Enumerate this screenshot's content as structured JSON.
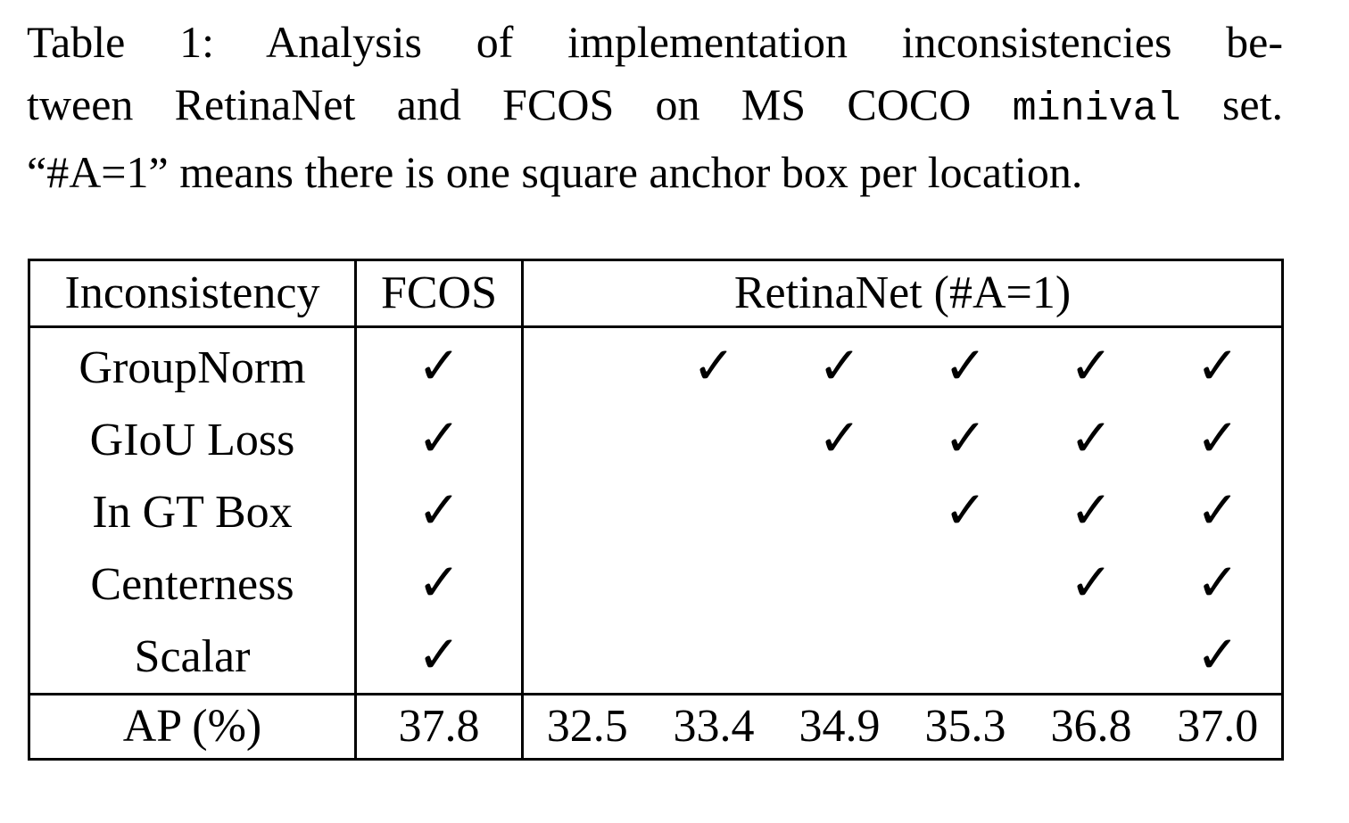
{
  "caption": {
    "line1": "Table 1:  Analysis of implementation inconsistencies be-",
    "line2_a": "tween RetinaNet and FCOS on MS COCO",
    "line2_mono": "minival",
    "line2_b": "set.",
    "line3": "“#A=1” means there is one square anchor box per location."
  },
  "table": {
    "headers": {
      "inconsistency": "Inconsistency",
      "fcos": "FCOS",
      "retinanet": "RetinaNet (#A=1)"
    },
    "check_glyph": "✓",
    "rows": [
      {
        "label": "GroupNorm",
        "fcos": true,
        "retina": [
          false,
          true,
          true,
          true,
          true,
          true
        ]
      },
      {
        "label": "GIoU Loss",
        "fcos": true,
        "retina": [
          false,
          false,
          true,
          true,
          true,
          true
        ]
      },
      {
        "label": "In GT Box",
        "fcos": true,
        "retina": [
          false,
          false,
          false,
          true,
          true,
          true
        ]
      },
      {
        "label": "Centerness",
        "fcos": true,
        "retina": [
          false,
          false,
          false,
          false,
          true,
          true
        ]
      },
      {
        "label": "Scalar",
        "fcos": true,
        "retina": [
          false,
          false,
          false,
          false,
          false,
          true
        ]
      }
    ],
    "ap": {
      "label": "AP (%)",
      "fcos": "37.8",
      "retina": [
        "32.5",
        "33.4",
        "34.9",
        "35.3",
        "36.8",
        "37.0"
      ]
    }
  }
}
